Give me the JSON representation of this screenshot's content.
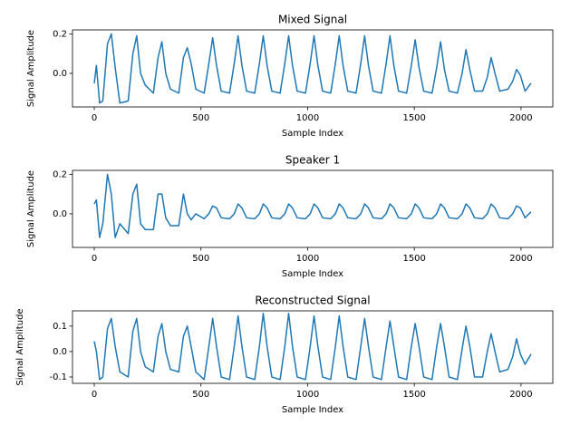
{
  "chart_data": [
    {
      "type": "line",
      "title": "Mixed Signal",
      "x_label": "Sample Index",
      "y_label": "Signal Amplitude",
      "xlim": [
        -102,
        2149
      ],
      "ylim": [
        -0.17,
        0.22
      ],
      "xticks": [
        0,
        500,
        1000,
        1500,
        2000
      ],
      "yticks": [
        {
          "value": 0,
          "label": "0.0"
        },
        0.2
      ],
      "x": [
        0,
        10,
        25,
        40,
        62,
        80,
        98,
        120,
        159,
        181,
        199,
        217,
        239,
        277,
        299,
        317,
        335,
        357,
        396,
        418,
        436,
        454,
        476,
        515,
        537,
        555,
        573,
        595,
        634,
        656,
        674,
        692,
        714,
        752,
        774,
        792,
        810,
        832,
        871,
        893,
        911,
        929,
        951,
        990,
        1012,
        1030,
        1048,
        1070,
        1108,
        1130,
        1148,
        1166,
        1188,
        1227,
        1249,
        1267,
        1285,
        1307,
        1346,
        1368,
        1386,
        1404,
        1426,
        1464,
        1486,
        1504,
        1522,
        1544,
        1583,
        1605,
        1623,
        1641,
        1663,
        1702,
        1724,
        1742,
        1760,
        1782,
        1820,
        1842,
        1860,
        1878,
        1900,
        1939,
        1961,
        1979,
        1997,
        2019,
        2047
      ],
      "series": [
        {
          "color": "#1f77b4",
          "values": [
            -0.05,
            0.04,
            -0.15,
            -0.14,
            0.15,
            0.2,
            0.03,
            -0.15,
            -0.14,
            0.1,
            0.19,
            0.0,
            -0.06,
            -0.1,
            0.08,
            0.16,
            0.0,
            -0.08,
            -0.1,
            0.08,
            0.13,
            0.05,
            -0.08,
            -0.1,
            0.05,
            0.18,
            0.04,
            -0.09,
            -0.1,
            0.05,
            0.19,
            0.04,
            -0.09,
            -0.1,
            0.05,
            0.19,
            0.04,
            -0.09,
            -0.1,
            0.05,
            0.19,
            0.04,
            -0.09,
            -0.1,
            0.05,
            0.19,
            0.04,
            -0.09,
            -0.1,
            0.05,
            0.19,
            0.04,
            -0.09,
            -0.1,
            0.05,
            0.19,
            0.04,
            -0.09,
            -0.1,
            0.05,
            0.19,
            0.04,
            -0.09,
            -0.1,
            0.04,
            0.17,
            0.03,
            -0.09,
            -0.1,
            0.03,
            0.16,
            0.02,
            -0.09,
            -0.1,
            0.0,
            0.12,
            0.02,
            -0.09,
            -0.09,
            -0.02,
            0.08,
            0.0,
            -0.09,
            -0.08,
            -0.04,
            0.02,
            -0.01,
            -0.09,
            -0.05
          ]
        }
      ]
    },
    {
      "type": "line",
      "title": "Speaker 1",
      "x_label": "Sample Index",
      "y_label": "Signal Amplitude",
      "xlim": [
        -102,
        2149
      ],
      "ylim": [
        -0.17,
        0.22
      ],
      "xticks": [
        0,
        500,
        1000,
        1500,
        2000
      ],
      "yticks": [
        {
          "value": 0,
          "label": "0.0"
        },
        0.2
      ],
      "x": [
        0,
        10,
        25,
        40,
        62,
        80,
        98,
        120,
        159,
        181,
        199,
        217,
        239,
        277,
        299,
        317,
        335,
        357,
        396,
        418,
        436,
        454,
        476,
        515,
        537,
        555,
        573,
        595,
        634,
        656,
        674,
        692,
        714,
        752,
        774,
        792,
        810,
        832,
        871,
        893,
        911,
        929,
        951,
        990,
        1012,
        1030,
        1048,
        1070,
        1108,
        1130,
        1148,
        1166,
        1188,
        1227,
        1249,
        1267,
        1285,
        1307,
        1346,
        1368,
        1386,
        1404,
        1426,
        1464,
        1486,
        1504,
        1522,
        1544,
        1583,
        1605,
        1623,
        1641,
        1663,
        1702,
        1724,
        1742,
        1760,
        1782,
        1820,
        1842,
        1860,
        1878,
        1900,
        1939,
        1961,
        1979,
        1997,
        2019,
        2047
      ],
      "series": [
        {
          "color": "#1f77b4",
          "values": [
            0.05,
            0.07,
            -0.12,
            -0.05,
            0.2,
            0.1,
            -0.12,
            -0.05,
            -0.1,
            0.1,
            0.15,
            -0.05,
            -0.08,
            -0.08,
            0.1,
            0.1,
            -0.02,
            -0.06,
            -0.06,
            0.1,
            0.0,
            -0.03,
            0.0,
            -0.025,
            0.0,
            0.04,
            0.03,
            -0.02,
            -0.025,
            0.0,
            0.05,
            0.03,
            -0.02,
            -0.025,
            0.0,
            0.05,
            0.03,
            -0.02,
            -0.025,
            0.0,
            0.05,
            0.03,
            -0.02,
            -0.025,
            0.0,
            0.05,
            0.03,
            -0.02,
            -0.025,
            0.0,
            0.05,
            0.03,
            -0.02,
            -0.025,
            0.0,
            0.05,
            0.03,
            -0.02,
            -0.025,
            0.0,
            0.05,
            0.03,
            -0.02,
            -0.025,
            0.0,
            0.05,
            0.03,
            -0.02,
            -0.025,
            0.0,
            0.05,
            0.03,
            -0.02,
            -0.025,
            0.0,
            0.05,
            0.03,
            -0.02,
            -0.025,
            0.0,
            0.05,
            0.03,
            -0.02,
            -0.025,
            0.0,
            0.04,
            0.03,
            -0.02,
            0.01
          ]
        }
      ]
    },
    {
      "type": "line",
      "title": "Reconstructed Signal",
      "x_label": "Sample Index",
      "y_label": "Signal Amplitude",
      "xlim": [
        -102,
        2149
      ],
      "ylim": [
        -0.125,
        0.16
      ],
      "xticks": [
        0,
        500,
        1000,
        1500,
        2000
      ],
      "yticks": [
        -0.1,
        {
          "value": 0,
          "label": "0.0"
        },
        0.1
      ],
      "x": [
        0,
        10,
        25,
        40,
        62,
        80,
        98,
        120,
        159,
        181,
        199,
        217,
        239,
        277,
        299,
        317,
        335,
        357,
        396,
        418,
        436,
        454,
        476,
        515,
        537,
        555,
        573,
        595,
        634,
        656,
        674,
        692,
        714,
        752,
        774,
        792,
        810,
        832,
        871,
        893,
        911,
        929,
        951,
        990,
        1012,
        1030,
        1048,
        1070,
        1108,
        1130,
        1148,
        1166,
        1188,
        1227,
        1249,
        1267,
        1285,
        1307,
        1346,
        1368,
        1386,
        1404,
        1426,
        1464,
        1486,
        1504,
        1522,
        1544,
        1583,
        1605,
        1623,
        1641,
        1663,
        1702,
        1724,
        1742,
        1760,
        1782,
        1820,
        1842,
        1860,
        1878,
        1900,
        1939,
        1961,
        1979,
        1997,
        2019,
        2047
      ],
      "series": [
        {
          "color": "#1f77b4",
          "values": [
            0.04,
            0.0,
            -0.11,
            -0.1,
            0.09,
            0.13,
            0.02,
            -0.08,
            -0.1,
            0.08,
            0.13,
            0.0,
            -0.06,
            -0.08,
            0.06,
            0.11,
            0.0,
            -0.07,
            -0.08,
            0.06,
            0.1,
            0.02,
            -0.08,
            -0.11,
            0.02,
            0.13,
            0.02,
            -0.1,
            -0.11,
            0.02,
            0.14,
            0.02,
            -0.1,
            -0.11,
            0.02,
            0.15,
            0.02,
            -0.1,
            -0.11,
            0.02,
            0.15,
            0.02,
            -0.1,
            -0.11,
            0.02,
            0.14,
            0.02,
            -0.1,
            -0.11,
            0.02,
            0.14,
            0.02,
            -0.1,
            -0.11,
            0.02,
            0.13,
            0.02,
            -0.1,
            -0.11,
            0.02,
            0.12,
            0.02,
            -0.1,
            -0.11,
            0.02,
            0.11,
            0.02,
            -0.1,
            -0.11,
            0.02,
            0.11,
            0.02,
            -0.1,
            -0.11,
            0.01,
            0.1,
            0.02,
            -0.1,
            -0.1,
            0.0,
            0.07,
            0.0,
            -0.08,
            -0.07,
            -0.02,
            0.05,
            -0.01,
            -0.05,
            -0.01
          ]
        }
      ]
    }
  ]
}
